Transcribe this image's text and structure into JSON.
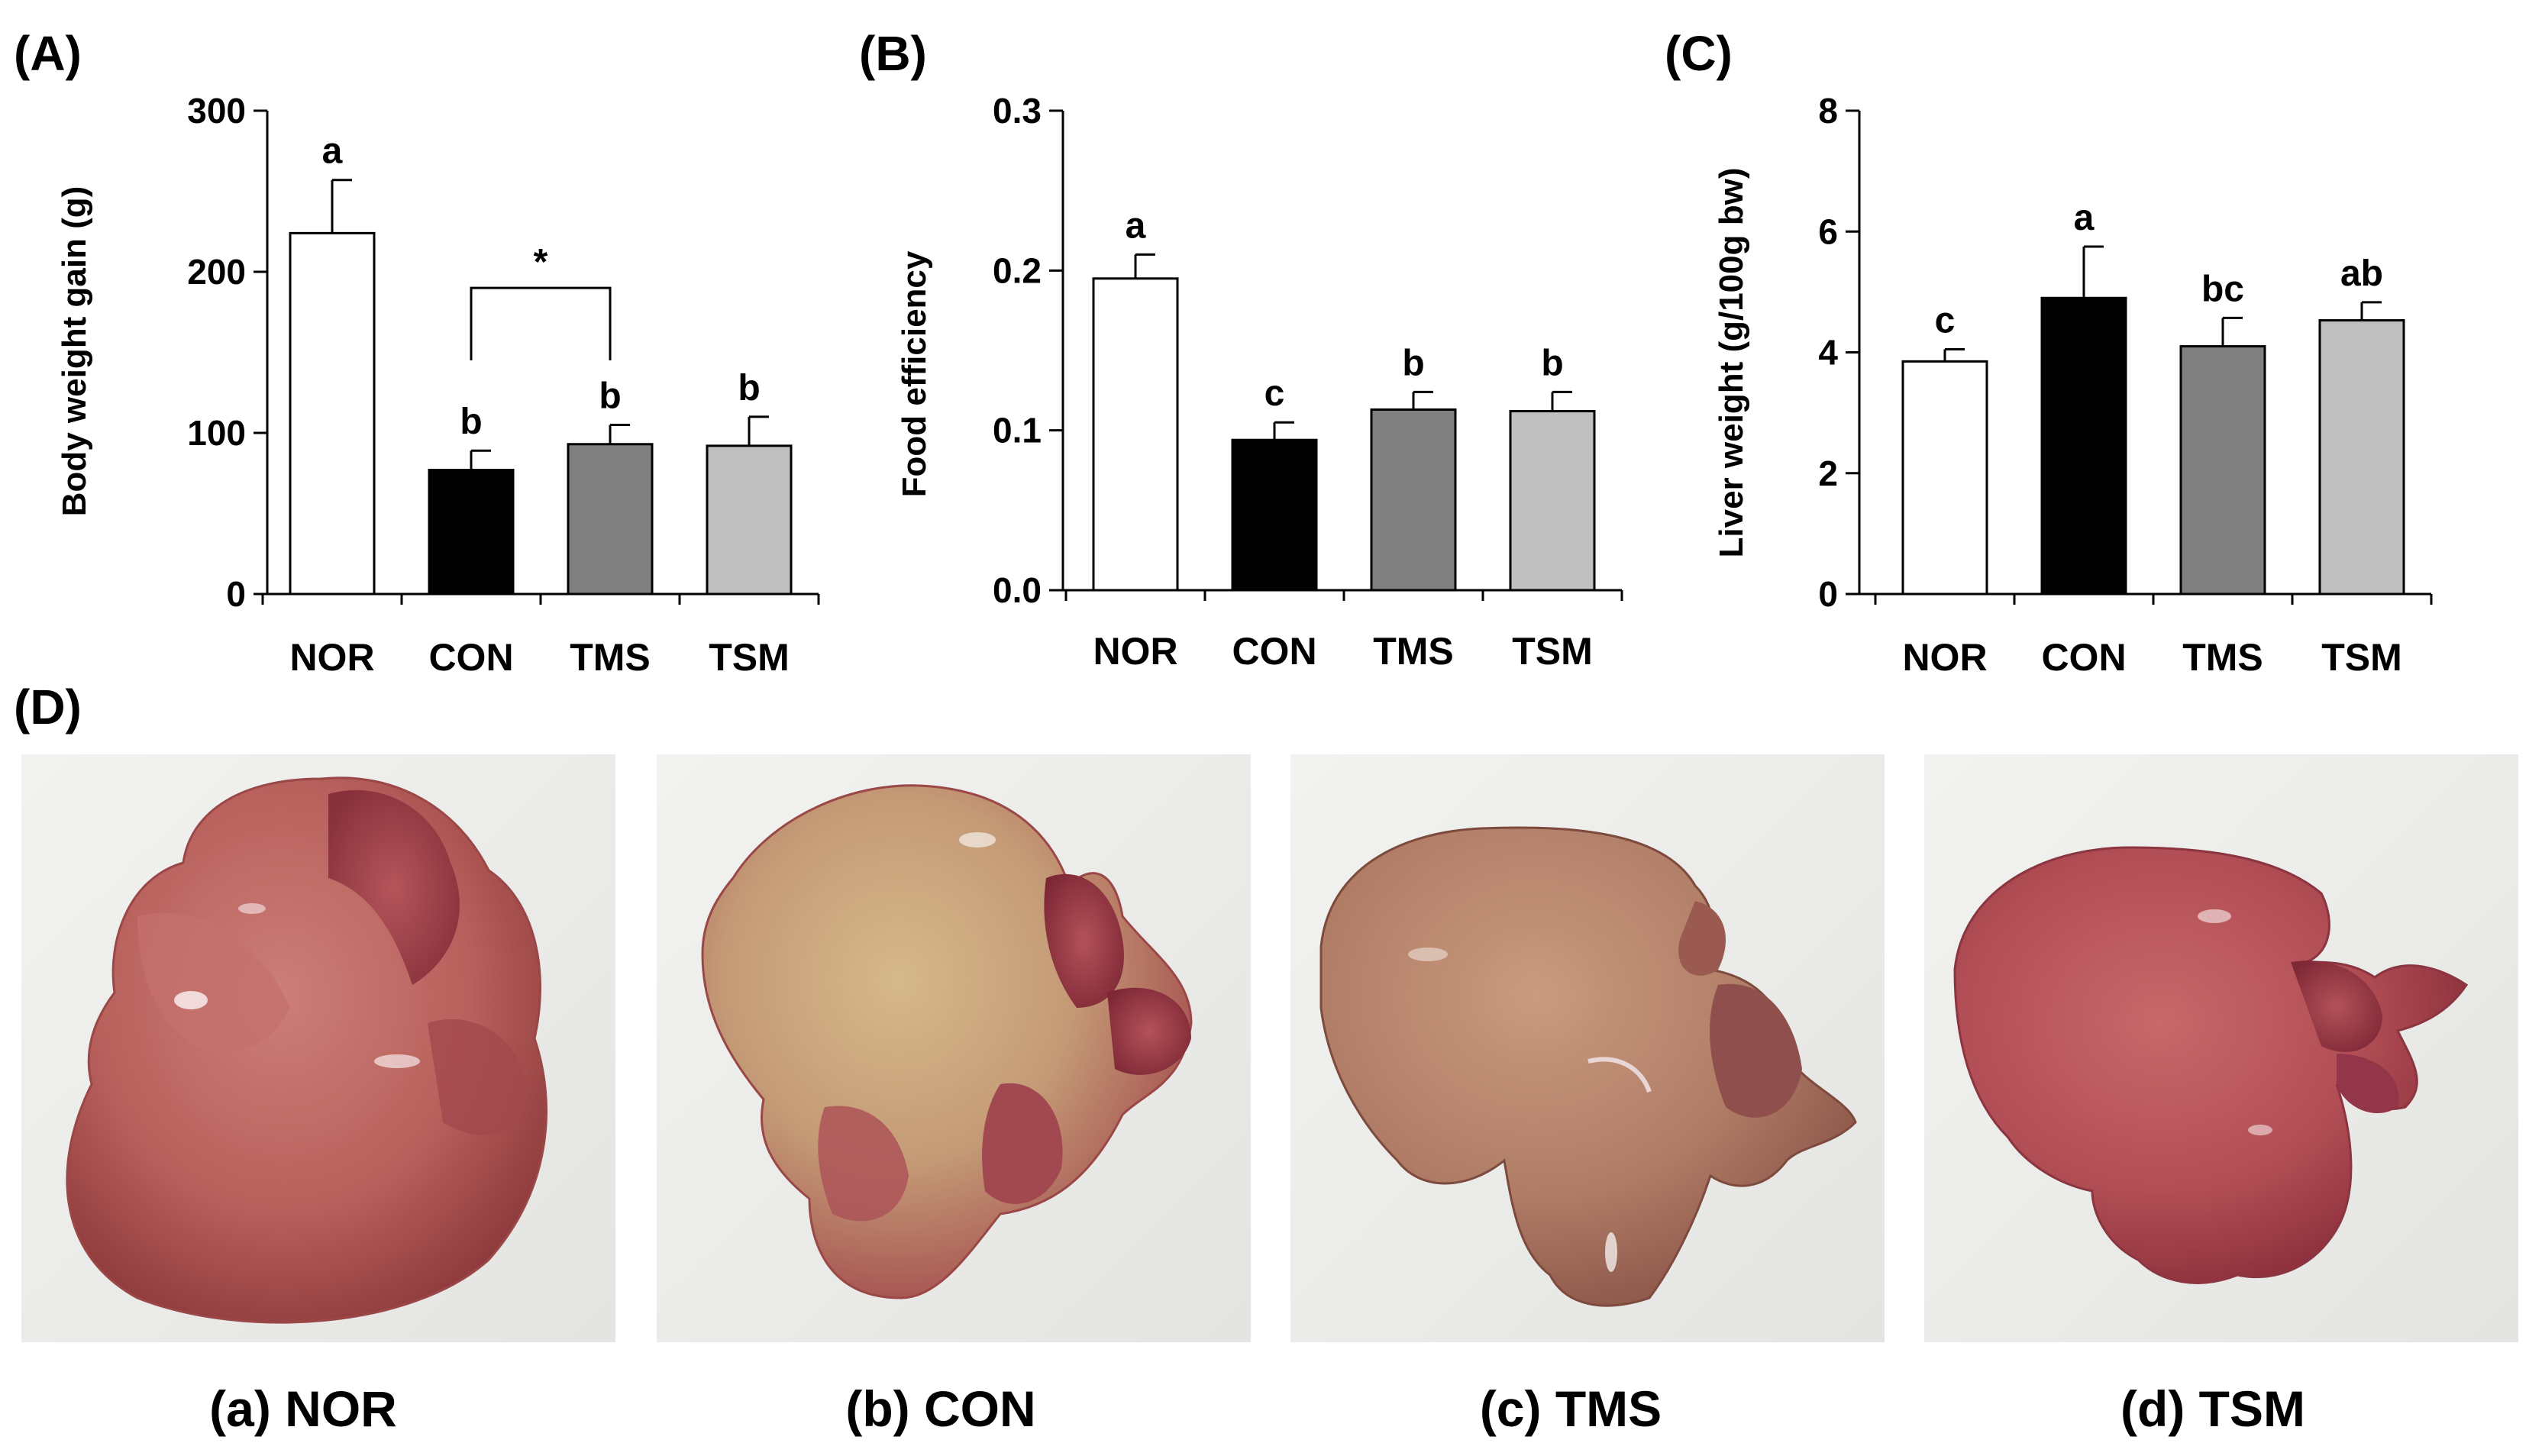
{
  "panel_labels": {
    "A": "(A)",
    "B": "(B)",
    "C": "(C)",
    "D": "(D)"
  },
  "colors": {
    "NOR": "#ffffff",
    "CON": "#000000",
    "TMS": "#808080",
    "TSM": "#c0c0c0"
  },
  "chart_data": [
    {
      "type": "bar",
      "categories": [
        "NOR",
        "CON",
        "TMS",
        "TSM"
      ],
      "values": [
        224,
        77,
        93,
        92
      ],
      "errors": [
        33,
        12,
        12,
        18
      ],
      "letters": [
        "a",
        "b",
        "b",
        "b"
      ],
      "ylabel": "Body weight gain (g)",
      "ylim": [
        0,
        300
      ],
      "yticks": [
        0,
        100,
        200,
        300
      ],
      "ytick_labels": [
        "0",
        "100",
        "200",
        "300"
      ],
      "bracket": {
        "from": "CON",
        "to": "TMS",
        "label": "*"
      }
    },
    {
      "type": "bar",
      "categories": [
        "NOR",
        "CON",
        "TMS",
        "TSM"
      ],
      "values": [
        0.195,
        0.094,
        0.113,
        0.112
      ],
      "errors": [
        0.015,
        0.011,
        0.011,
        0.012
      ],
      "letters": [
        "a",
        "c",
        "b",
        "b"
      ],
      "ylabel": "Food efficiency",
      "ylim": [
        0,
        0.3
      ],
      "yticks": [
        0,
        0.1,
        0.2,
        0.3
      ],
      "ytick_labels": [
        "0.0",
        "0.1",
        "0.2",
        "0.3"
      ]
    },
    {
      "type": "bar",
      "categories": [
        "NOR",
        "CON",
        "TMS",
        "TSM"
      ],
      "values": [
        3.85,
        4.9,
        4.1,
        4.53
      ],
      "errors": [
        0.2,
        0.85,
        0.47,
        0.3
      ],
      "letters": [
        "c",
        "a",
        "bc",
        "ab"
      ],
      "ylabel": "Liver weight (g/100g bw)",
      "ylim": [
        0,
        8
      ],
      "yticks": [
        0,
        2,
        4,
        6,
        8
      ],
      "ytick_labels": [
        "0",
        "2",
        "4",
        "6",
        "8"
      ]
    }
  ],
  "photos": [
    {
      "caption": "(a) NOR"
    },
    {
      "caption": "(b) CON"
    },
    {
      "caption": "(c) TMS"
    },
    {
      "caption": "(d) TSM"
    }
  ]
}
